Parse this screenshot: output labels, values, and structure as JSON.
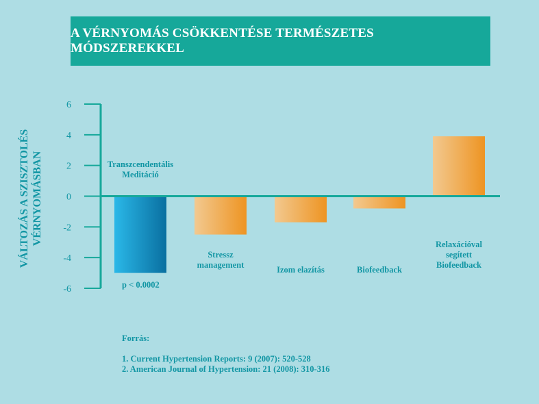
{
  "chart_data": {
    "type": "bar",
    "title": "A VÉRNYOMÁS CSÖKKENTÉSE TERMÉSZETES MÓDSZEREKKEL",
    "ylabel_lines": [
      "VÁLTOZÁS A SZISZTOLÉS",
      "VÉRNYOMÁSBAN"
    ],
    "xlabel": "",
    "ylim": [
      -6,
      6
    ],
    "yticks": [
      6,
      4,
      2,
      0,
      -2,
      -4,
      -6
    ],
    "categories": [
      "Transzcendentális\nMeditáció",
      "Stressz\nmanagement",
      "Izom elazítás",
      "Biofeedback",
      "Relaxációval\nsegített\nBiofeedback"
    ],
    "values": [
      -5,
      -2.5,
      -1.7,
      -0.8,
      3.9
    ],
    "annotation": "p < 0.0002",
    "grid": false,
    "colors": {
      "highlight_start": "#2ab8e8",
      "highlight_end": "#0a6fa0",
      "bar_start": "#f2c990",
      "bar_end": "#ee9422",
      "axis": "#16a89a",
      "text": "#1296a4"
    }
  },
  "sources": {
    "heading": "Forrás:",
    "items": [
      "1. Current Hypertension Reports: 9 (2007): 520-528",
      "2. American Journal of Hypertension: 21 (2008): 310-316"
    ]
  }
}
